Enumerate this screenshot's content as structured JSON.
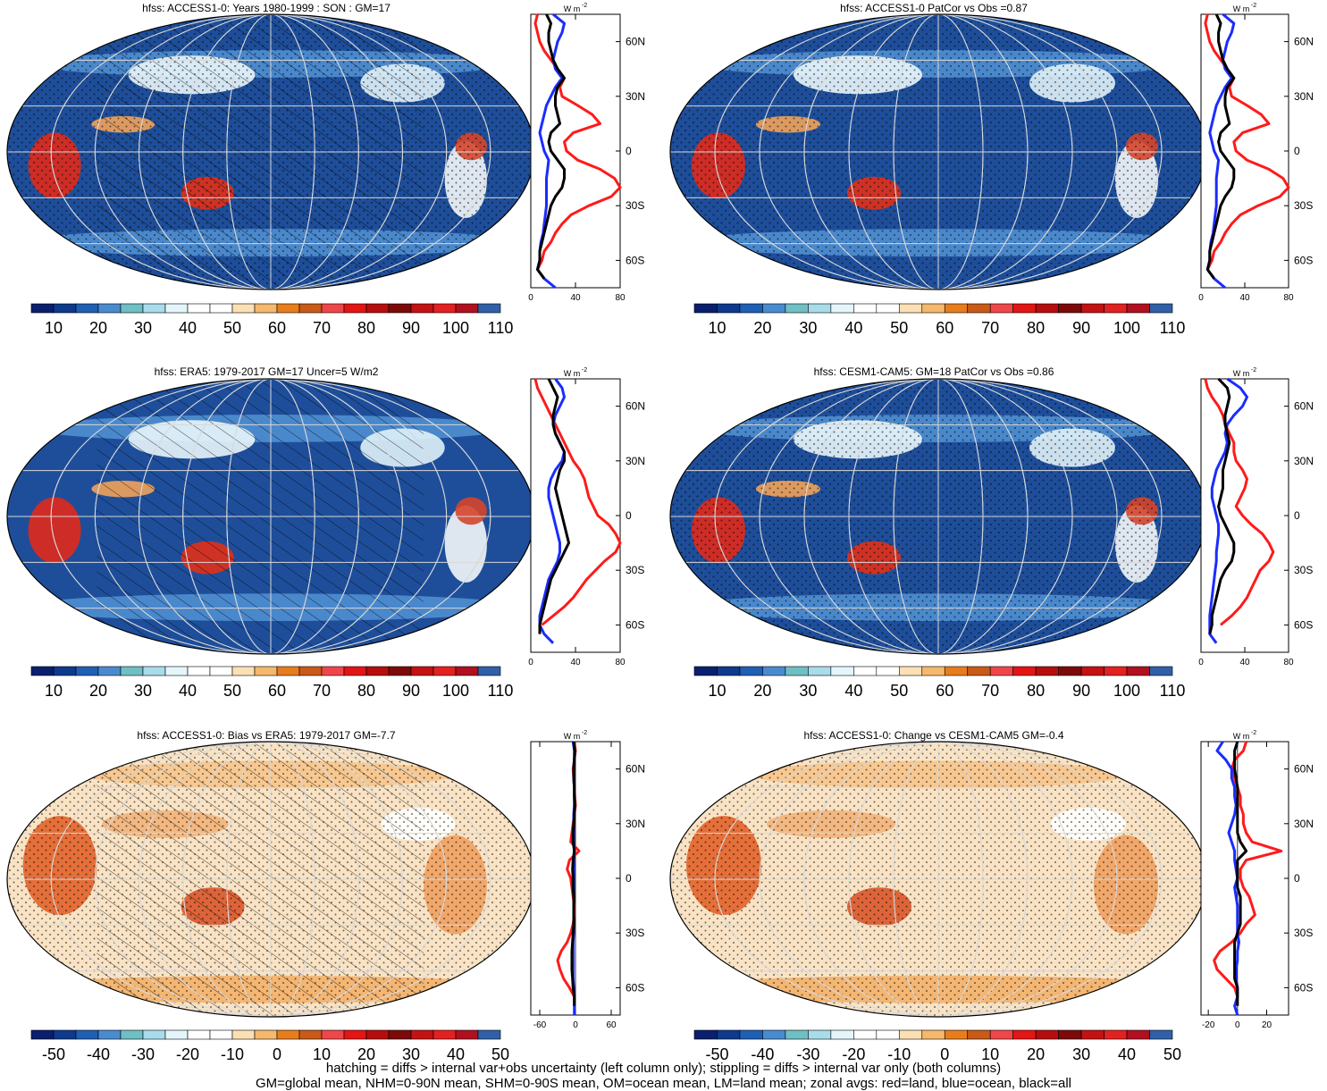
{
  "colorbars": {
    "abs": {
      "labels": [
        "10",
        "20",
        "30",
        "40",
        "50",
        "60",
        "70",
        "80",
        "90",
        "100",
        "110"
      ],
      "colors": [
        "#0a1f6e",
        "#0d3a8c",
        "#1f5fb4",
        "#4a8bd0",
        "#6fbfc4",
        "#a8dcea",
        "#e4f6fb",
        "#ffffff",
        "#ffffff",
        "#fbe0b5",
        "#f4b86e",
        "#e87d1e",
        "#c95a17",
        "#f0464a",
        "#e41515",
        "#b70d0d",
        "#7d0a0a",
        "#c41212",
        "#e42020",
        "#b01020",
        "#3060a8"
      ]
    },
    "diff": {
      "labels": [
        "-50",
        "-40",
        "-30",
        "-20",
        "-10",
        "0",
        "10",
        "20",
        "30",
        "40",
        "50"
      ],
      "colors": [
        "#0a1f6e",
        "#0d3a8c",
        "#1f5fb4",
        "#4a8bd0",
        "#6fbfc4",
        "#a8dcea",
        "#e4f6fb",
        "#ffffff",
        "#ffffff",
        "#fbe0b5",
        "#f4b86e",
        "#e87d1e",
        "#c95a17",
        "#f0464a",
        "#e41515",
        "#b70d0d",
        "#7d0a0a",
        "#c41212",
        "#e42020",
        "#b01020",
        "#3060a8"
      ]
    }
  },
  "lat_ticks": [
    "60N",
    "30N",
    "0",
    "30S",
    "60S"
  ],
  "profile_unit": "W m",
  "profile_unit_sup": "-2",
  "colors": {
    "land": "#ff1a1a",
    "ocean": "#1a2cff",
    "all": "#000000"
  },
  "chart_data": [
    {
      "type": "map+line",
      "title": "hfss: ACCESS1-0: Years 1980-1999 : SON : GM=17",
      "colorbar": "abs",
      "hatching": true,
      "stippling": true,
      "profile": {
        "xlim": [
          0,
          80
        ],
        "xticks": [
          "0",
          "40",
          "80"
        ],
        "lat": [
          80,
          75,
          70,
          65,
          60,
          55,
          50,
          45,
          40,
          35,
          30,
          25,
          20,
          15,
          10,
          5,
          0,
          -5,
          -10,
          -15,
          -20,
          -25,
          -30,
          -35,
          -40,
          -45,
          -50,
          -55,
          -60,
          -65,
          -70,
          -75
        ],
        "land": [
          null,
          6,
          4,
          6,
          8,
          12,
          18,
          24,
          30,
          26,
          28,
          42,
          55,
          62,
          38,
          30,
          32,
          42,
          62,
          75,
          80,
          72,
          52,
          36,
          28,
          22,
          18,
          12,
          10,
          6,
          null,
          null
        ],
        "ocean": [
          null,
          20,
          30,
          28,
          24,
          22,
          20,
          22,
          28,
          22,
          18,
          14,
          12,
          10,
          8,
          10,
          12,
          16,
          15,
          14,
          14,
          14,
          14,
          13,
          12,
          11,
          9,
          8,
          8,
          6,
          12,
          22
        ],
        "all": [
          null,
          14,
          18,
          16,
          16,
          18,
          20,
          24,
          30,
          24,
          22,
          22,
          24,
          26,
          18,
          16,
          18,
          24,
          30,
          30,
          28,
          22,
          18,
          16,
          14,
          12,
          10,
          8,
          8,
          6,
          12,
          null
        ]
      }
    },
    {
      "type": "map+line",
      "title": "hfss: ACCESS1-0 PatCor vs Obs =0.87",
      "colorbar": "abs",
      "hatching": false,
      "stippling": true,
      "profile": {
        "xlim": [
          0,
          80
        ],
        "xticks": [
          "0",
          "40",
          "80"
        ],
        "lat": [
          80,
          75,
          70,
          65,
          60,
          55,
          50,
          45,
          40,
          35,
          30,
          25,
          20,
          15,
          10,
          5,
          0,
          -5,
          -10,
          -15,
          -20,
          -25,
          -30,
          -35,
          -40,
          -45,
          -50,
          -55,
          -60,
          -65,
          -70,
          -75
        ],
        "land": [
          null,
          6,
          4,
          6,
          8,
          12,
          18,
          24,
          30,
          26,
          28,
          42,
          55,
          62,
          38,
          30,
          32,
          42,
          62,
          75,
          80,
          72,
          52,
          36,
          28,
          22,
          18,
          12,
          10,
          6,
          null,
          null
        ],
        "ocean": [
          null,
          20,
          30,
          28,
          24,
          22,
          20,
          22,
          28,
          22,
          18,
          14,
          12,
          10,
          8,
          10,
          12,
          16,
          15,
          14,
          14,
          14,
          14,
          13,
          12,
          11,
          9,
          8,
          8,
          6,
          12,
          22
        ],
        "all": [
          null,
          14,
          18,
          16,
          16,
          18,
          20,
          24,
          30,
          24,
          22,
          22,
          24,
          26,
          18,
          16,
          18,
          24,
          30,
          30,
          28,
          22,
          18,
          16,
          14,
          12,
          10,
          8,
          8,
          6,
          12,
          null
        ]
      }
    },
    {
      "type": "map+line",
      "title": "hfss: ERA5: 1979-2017 GM=17 Uncer=5 W/m2",
      "colorbar": "abs",
      "hatching": true,
      "stippling": false,
      "profile": {
        "xlim": [
          0,
          80
        ],
        "xticks": [
          "0",
          "40",
          "80"
        ],
        "lat": [
          80,
          75,
          70,
          65,
          60,
          55,
          50,
          45,
          40,
          35,
          30,
          25,
          20,
          15,
          10,
          5,
          0,
          -5,
          -10,
          -15,
          -20,
          -25,
          -30,
          -35,
          -40,
          -45,
          -50,
          -55,
          -60,
          -65,
          -70,
          -75
        ],
        "land": [
          null,
          4,
          6,
          10,
          14,
          18,
          22,
          26,
          30,
          34,
          38,
          44,
          48,
          50,
          52,
          56,
          60,
          70,
          76,
          80,
          76,
          66,
          58,
          50,
          44,
          38,
          30,
          20,
          10,
          null,
          null,
          null
        ],
        "ocean": [
          null,
          22,
          28,
          30,
          26,
          22,
          20,
          22,
          26,
          30,
          28,
          22,
          18,
          16,
          16,
          18,
          20,
          22,
          24,
          26,
          26,
          24,
          20,
          16,
          14,
          12,
          10,
          8,
          8,
          12,
          20,
          null
        ],
        "all": [
          null,
          16,
          20,
          24,
          22,
          20,
          20,
          22,
          26,
          30,
          30,
          26,
          24,
          22,
          24,
          26,
          28,
          30,
          32,
          34,
          30,
          26,
          22,
          18,
          16,
          14,
          12,
          10,
          8,
          8,
          null,
          null
        ]
      }
    },
    {
      "type": "map+line",
      "title": "hfss: CESM1-CAM5: GM=18 PatCor vs Obs =0.86",
      "colorbar": "abs",
      "hatching": false,
      "stippling": true,
      "profile": {
        "xlim": [
          0,
          80
        ],
        "xticks": [
          "0",
          "40",
          "80"
        ],
        "lat": [
          80,
          75,
          70,
          65,
          60,
          55,
          50,
          45,
          40,
          35,
          30,
          25,
          20,
          15,
          10,
          5,
          0,
          -5,
          -10,
          -15,
          -20,
          -25,
          -30,
          -35,
          -40,
          -45,
          -50,
          -55,
          -60,
          -65,
          -70,
          -75
        ],
        "land": [
          null,
          4,
          6,
          10,
          16,
          20,
          22,
          26,
          30,
          30,
          32,
          38,
          42,
          40,
          36,
          32,
          38,
          46,
          56,
          62,
          66,
          62,
          54,
          50,
          46,
          42,
          36,
          28,
          18,
          null,
          null,
          null
        ],
        "ocean": [
          null,
          24,
          36,
          42,
          38,
          30,
          24,
          22,
          24,
          22,
          18,
          14,
          12,
          10,
          10,
          12,
          14,
          16,
          16,
          15,
          14,
          14,
          13,
          12,
          11,
          10,
          9,
          8,
          8,
          8,
          14,
          null
        ],
        "all": [
          null,
          16,
          24,
          26,
          24,
          22,
          22,
          24,
          26,
          24,
          22,
          20,
          20,
          20,
          18,
          16,
          18,
          22,
          26,
          30,
          30,
          28,
          22,
          18,
          16,
          14,
          12,
          10,
          10,
          8,
          null,
          null
        ]
      }
    },
    {
      "type": "map+line",
      "title": "hfss: ACCESS1-0: Bias vs ERA5: 1979-2017  GM=-7.7",
      "colorbar": "diff",
      "hatching": true,
      "stippling": true,
      "profile": {
        "xlim": [
          -75,
          75
        ],
        "xticks": [
          "-60",
          "0",
          "60"
        ],
        "lat": [
          80,
          75,
          70,
          65,
          60,
          55,
          50,
          45,
          40,
          35,
          30,
          25,
          20,
          15,
          10,
          5,
          0,
          -5,
          -10,
          -15,
          -20,
          -25,
          -30,
          -35,
          -40,
          -45,
          -50,
          -55,
          -60,
          -65,
          -70,
          -75
        ],
        "land": [
          null,
          -2,
          0,
          -2,
          -4,
          -3,
          -2,
          -1,
          0,
          -2,
          -4,
          -6,
          -8,
          6,
          -10,
          -14,
          -8,
          -6,
          -4,
          -2,
          -2,
          -4,
          -8,
          -14,
          -24,
          -30,
          -26,
          -20,
          -10,
          -2,
          null,
          null
        ],
        "ocean": [
          null,
          -4,
          -2,
          -2,
          -3,
          -3,
          -2,
          -2,
          -2,
          -3,
          -3,
          -3,
          -3,
          -2,
          -3,
          -3,
          -3,
          -3,
          -3,
          -3,
          -3,
          -3,
          -3,
          -4,
          -4,
          -4,
          -4,
          -4,
          -3,
          -2,
          -2,
          -2
        ],
        "all": [
          null,
          -3,
          -1,
          -2,
          -3,
          -3,
          -2,
          -2,
          -1,
          -2,
          -3,
          -4,
          -4,
          -2,
          -4,
          -5,
          -4,
          -4,
          -3,
          -3,
          -3,
          -3,
          -4,
          -5,
          -6,
          -6,
          -6,
          -5,
          -4,
          -2,
          -2,
          null
        ]
      }
    },
    {
      "type": "map+line",
      "title": "hfss: ACCESS1-0: Change vs CESM1-CAM5 GM=-0.4",
      "colorbar": "diff",
      "hatching": false,
      "stippling": true,
      "profile": {
        "xlim": [
          -25,
          35
        ],
        "xticks": [
          "-20",
          "0",
          "20"
        ],
        "lat": [
          80,
          75,
          70,
          65,
          60,
          55,
          50,
          45,
          40,
          35,
          30,
          25,
          20,
          15,
          10,
          5,
          0,
          -5,
          -10,
          -15,
          -20,
          -25,
          -30,
          -35,
          -40,
          -45,
          -50,
          -55,
          -60,
          -65,
          -70,
          -75
        ],
        "land": [
          null,
          6,
          4,
          -2,
          -4,
          -2,
          0,
          2,
          2,
          4,
          4,
          6,
          10,
          30,
          6,
          2,
          2,
          4,
          8,
          10,
          12,
          6,
          2,
          -4,
          -12,
          -16,
          -14,
          -8,
          -2,
          0,
          null,
          null
        ],
        "ocean": [
          null,
          -10,
          -14,
          -8,
          -4,
          -4,
          -2,
          -2,
          -1,
          -2,
          -4,
          -6,
          -4,
          -2,
          -2,
          -1,
          0,
          -2,
          -1,
          0,
          0,
          0,
          0,
          1,
          0,
          0,
          -1,
          -1,
          0,
          0,
          -2,
          0
        ],
        "all": [
          null,
          0,
          -2,
          -2,
          -2,
          -1,
          0,
          0,
          0,
          0,
          0,
          0,
          2,
          6,
          0,
          0,
          0,
          0,
          2,
          2,
          2,
          2,
          0,
          -2,
          -2,
          -2,
          -2,
          -2,
          0,
          0,
          0,
          null
        ]
      }
    }
  ],
  "caption": {
    "line1": "hatching = diffs > internal var+obs uncertainty (left column only); stippling = diffs > internal var only (both columns)",
    "line2": "GM=global mean, NHM=0-90N mean, SHM=0-90S mean, OM=ocean mean, LM=land mean; zonal avgs: red=land, blue=ocean, black=all"
  }
}
